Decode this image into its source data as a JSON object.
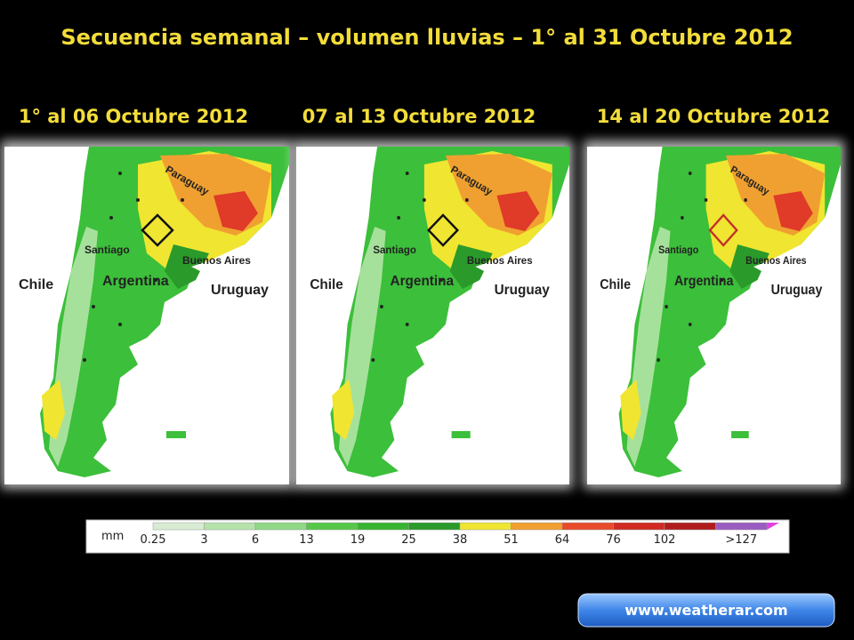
{
  "header": {
    "title": "Secuencia semanal – volumen lluvias – 1° al 31 Octubre 2012"
  },
  "panels": [
    {
      "title": "1° al 06 Octubre 2012"
    },
    {
      "title": "07 al 13 Octubre 2012"
    },
    {
      "title": "14 al 20 Octubre 2012"
    }
  ],
  "map_labels": {
    "paraguay": "Paraguay",
    "santiago": "Santiago",
    "buenos_aires": "Buenos Aires",
    "chile": "Chile",
    "argentina": "Argentina",
    "uruguay": "Uruguay"
  },
  "legend": {
    "unit": "mm",
    "labels": [
      "0.25",
      "3",
      "6",
      "13",
      "19",
      "25",
      "38",
      "51",
      "64",
      "76",
      "102",
      ">127"
    ],
    "colors": [
      "#d8ecd4",
      "#b5e3aa",
      "#8fd885",
      "#55c84a",
      "#38b431",
      "#2a9a2a",
      "#f0e530",
      "#f0a030",
      "#e84a2a",
      "#d02a22",
      "#b01c1c",
      "#9a5cc0"
    ]
  },
  "footer": {
    "link": "www.weatherar.com"
  }
}
